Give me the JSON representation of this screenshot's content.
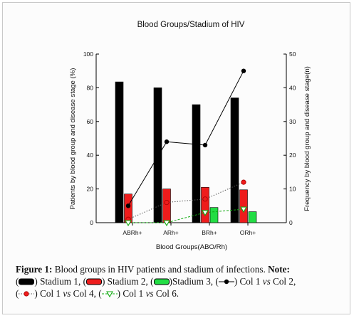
{
  "chart_data": {
    "type": "bar",
    "title": "Blood Groups/Stadium of HIV",
    "xlabel": "Blood Groups(ABO/Rh)",
    "ylabel": "Patients by blood group and disease stage (%)",
    "y2label": "Frequency by blood group and disease stage(n)",
    "categories": [
      "ABRh+",
      "ARh+",
      "BRh+",
      "ORh+"
    ],
    "ylim": [
      0,
      100
    ],
    "y2lim": [
      0,
      50
    ],
    "yticks": [
      "0",
      "20",
      "40",
      "60",
      "80",
      "100"
    ],
    "y2ticks": [
      "0",
      "10",
      "20",
      "30",
      "40",
      "50"
    ],
    "grid": false,
    "series": [
      {
        "name": "Stadium 1",
        "kind": "bar",
        "axis": "left",
        "color": "#000000",
        "values": [
          83.5,
          80,
          70,
          74
        ]
      },
      {
        "name": "Stadium 2",
        "kind": "bar",
        "axis": "left",
        "color": "#ee1c1c",
        "values": [
          17,
          20,
          21,
          19.5
        ]
      },
      {
        "name": "Stadium 3",
        "kind": "bar",
        "axis": "left",
        "color": "#22dd44",
        "values": [
          null,
          null,
          9,
          6.5
        ]
      },
      {
        "name": "Col 1 vs Col 2",
        "kind": "line",
        "axis": "right",
        "color": "#000000",
        "marker": "filled-circle",
        "dash": "solid",
        "values": [
          5,
          24,
          23,
          45
        ]
      },
      {
        "name": "Col 1 vs Col 4",
        "kind": "line",
        "axis": "right",
        "color": "#cc1111",
        "marker": "circle",
        "dash": "dotted",
        "values": [
          1,
          6,
          7,
          12
        ]
      },
      {
        "name": "Col 1 vs Col 6",
        "kind": "line",
        "axis": "right",
        "color": "#11aa11",
        "marker": "triangle-down",
        "dash": "dashed",
        "values": [
          0,
          0,
          3,
          4
        ]
      }
    ]
  },
  "caption": {
    "label": "Figure 1:",
    "text": "Blood groups in HIV patients and stadium of infections.",
    "note_label": "Note:",
    "legend": [
      {
        "text": "Stadium 1,",
        "kind": "bar",
        "color": "#000000"
      },
      {
        "text": "Stadium 2,",
        "kind": "bar",
        "color": "#ee1c1c"
      },
      {
        "text": "Stadium 3,",
        "kind": "bar",
        "color": "#22dd44"
      },
      {
        "text_a": "Col 1",
        "vs": "vs",
        "text_b": "Col 2,",
        "kind": "line",
        "color": "#000000",
        "marker": "filled-circle"
      },
      {
        "text_a": "Col 1",
        "vs": "vs",
        "text_b": "Col 4,",
        "kind": "line",
        "color": "#cc1111",
        "marker": "circle"
      },
      {
        "text_a": "Col 1",
        "vs": "vs",
        "text_b": "Col 6.",
        "kind": "line",
        "color": "#11aa11",
        "marker": "triangle-down"
      }
    ]
  }
}
